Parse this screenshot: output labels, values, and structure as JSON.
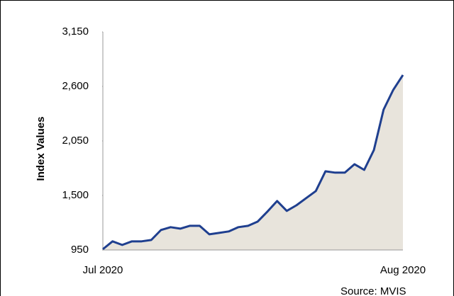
{
  "chart_data": {
    "type": "area",
    "y_label": "Index Values",
    "source": "Source: MVIS",
    "categories": [
      "Jul 2020",
      null,
      null,
      null,
      null,
      null,
      null,
      null,
      null,
      null,
      null,
      null,
      null,
      null,
      null,
      null,
      null,
      null,
      null,
      null,
      null,
      null,
      null,
      null,
      null,
      null,
      null,
      null,
      null,
      null,
      null,
      "Aug 2020"
    ],
    "values": [
      958,
      1037,
      1001,
      1037,
      1037,
      1051,
      1151,
      1180,
      1165,
      1194,
      1194,
      1108,
      1122,
      1137,
      1180,
      1194,
      1237,
      1337,
      1444,
      1344,
      1401,
      1473,
      1544,
      1744,
      1730,
      1730,
      1815,
      1758,
      1958,
      2365,
      2565,
      2715
    ],
    "color": "#1f3f8f",
    "fill": "#e8e4dc",
    "ylim": [
      950,
      3150
    ],
    "yticks": [
      {
        "value": 950,
        "label": "950"
      },
      {
        "value": 1500,
        "label": "1,500"
      },
      {
        "value": 2050,
        "label": "2,050"
      },
      {
        "value": 2600,
        "label": "2,600"
      },
      {
        "value": 3150,
        "label": "3,150"
      }
    ]
  }
}
